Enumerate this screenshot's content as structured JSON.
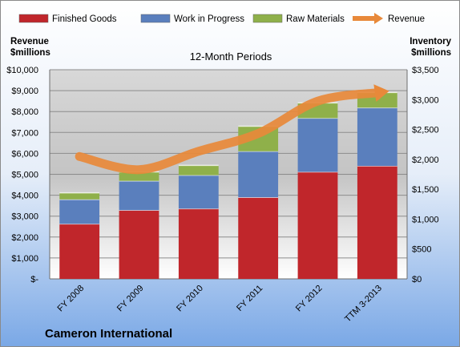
{
  "chart_data": {
    "type": "bar",
    "stacked": true,
    "title": "12-Month Periods",
    "company": "Cameron International",
    "left_axis_label": [
      "Revenue",
      "$millions"
    ],
    "right_axis_label": [
      "Inventory",
      "$millions"
    ],
    "categories": [
      "FY 2008",
      "FY 2009",
      "FY 2010",
      "FY 2011",
      "FY 2012",
      "TTM 3-2013"
    ],
    "series": [
      {
        "name": "Finished Goods",
        "axis": "right",
        "color": "#c0262b",
        "values": [
          920,
          1150,
          1175,
          1365,
          1790,
          1890
        ]
      },
      {
        "name": "Work in Progress",
        "axis": "right",
        "color": "#5a7fbd",
        "values": [
          410,
          490,
          560,
          770,
          900,
          975
        ]
      },
      {
        "name": "Raw Materials",
        "axis": "right",
        "color": "#8fb04a",
        "values": [
          110,
          150,
          165,
          420,
          255,
          255
        ]
      }
    ],
    "line_series": {
      "name": "Revenue",
      "axis": "left",
      "color": "#e8893a",
      "values": [
        5850,
        5220,
        6100,
        6950,
        8500,
        8900
      ]
    },
    "ylim_left": [
      0,
      10000
    ],
    "ylim_right": [
      0,
      3500
    ],
    "left_ticks": [
      "$-",
      "$1,000",
      "$2,000",
      "$3,000",
      "$4,000",
      "$5,000",
      "$6,000",
      "$7,000",
      "$8,000",
      "$9,000",
      "$10,000"
    ],
    "right_ticks": [
      "$0",
      "$500",
      "$1,000",
      "$1,500",
      "$2,000",
      "$2,500",
      "$3,000",
      "$3,500"
    ],
    "legend_position": "top",
    "grid": true
  }
}
